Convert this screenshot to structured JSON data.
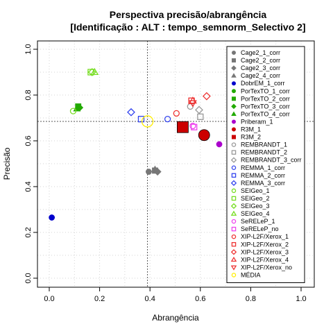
{
  "chart_data": {
    "type": "scatter",
    "title": "Perspectiva precisão/abrangência",
    "subtitle": "[Identificação : ALT : tempo_semnorm_Selectivo 2]",
    "xlabel": "Abrangência",
    "ylabel": "Precisão",
    "xlim": [
      0,
      1
    ],
    "ylim": [
      0,
      1
    ],
    "xticks": [
      "0.0",
      "0.2",
      "0.4",
      "0.6",
      "0.8",
      "1.0"
    ],
    "yticks": [
      "0.0",
      "0.2",
      "0.4",
      "0.6",
      "0.8",
      "1.0"
    ],
    "grid": true,
    "legend_position": "top-right",
    "reference_lines": {
      "x": 0.39,
      "y": 0.685
    },
    "series": [
      {
        "name": "Cage2_1_corr",
        "color": "#777777",
        "shape": "circle-filled",
        "points": [
          [
            0.395,
            0.465
          ]
        ],
        "size": 4
      },
      {
        "name": "Cage2_2_corr",
        "color": "#777777",
        "shape": "square-filled",
        "points": [
          [
            0.42,
            0.47
          ]
        ],
        "size": 4
      },
      {
        "name": "Cage2_3_corr",
        "color": "#777777",
        "shape": "diamond-filled",
        "points": [
          [
            0.43,
            0.465
          ]
        ],
        "size": 4
      },
      {
        "name": "Cage2_4_corr",
        "color": "#777777",
        "shape": "triangle-filled",
        "points": [
          [
            0.42,
            0.475
          ]
        ],
        "size": 4
      },
      {
        "name": "DobrEM_1_corr",
        "color": "#0000cc",
        "shape": "circle-filled",
        "points": [
          [
            0.01,
            0.265
          ]
        ],
        "size": 4
      },
      {
        "name": "PorTexTO_1_corr",
        "color": "#22aa00",
        "shape": "circle-filled",
        "points": [
          [
            0.115,
            0.745
          ]
        ],
        "size": 4
      },
      {
        "name": "PorTexTO_2_corr",
        "color": "#22aa00",
        "shape": "square-filled",
        "points": [
          [
            0.115,
            0.75
          ]
        ],
        "size": 4
      },
      {
        "name": "PorTexTO_3_corr",
        "color": "#22aa00",
        "shape": "diamond-filled",
        "points": [
          [
            0.12,
            0.745
          ]
        ],
        "size": 4
      },
      {
        "name": "PorTexTO_4_corr",
        "color": "#22aa00",
        "shape": "triangle-filled",
        "points": [
          [
            0.11,
            0.74
          ]
        ],
        "size": 4
      },
      {
        "name": "Priberam_1",
        "color": "#aa00cc",
        "shape": "circle-filled",
        "points": [
          [
            0.675,
            0.585
          ]
        ],
        "size": 4
      },
      {
        "name": "R3M_1",
        "color": "#cc0000",
        "shape": "circle-filled",
        "points": [
          [
            0.615,
            0.625
          ]
        ],
        "size": 8
      },
      {
        "name": "R3M_2",
        "color": "#cc0000",
        "shape": "square-filled",
        "points": [
          [
            0.53,
            0.66
          ]
        ],
        "size": 8
      },
      {
        "name": "REMBRANDT_1",
        "color": "#999999",
        "shape": "circle-open",
        "points": [
          [
            0.56,
            0.75
          ]
        ],
        "size": 4
      },
      {
        "name": "REMBRANDT_2",
        "color": "#999999",
        "shape": "square-open",
        "points": [
          [
            0.6,
            0.705
          ]
        ],
        "size": 4
      },
      {
        "name": "REMBRANDT_3_corr",
        "color": "#999999",
        "shape": "diamond-open",
        "points": [
          [
            0.595,
            0.735
          ]
        ],
        "size": 4
      },
      {
        "name": "REMMA_1_corr",
        "color": "#3344ee",
        "shape": "circle-open",
        "points": [
          [
            0.47,
            0.695
          ]
        ],
        "size": 4
      },
      {
        "name": "REMMA_2_corr",
        "color": "#3344ee",
        "shape": "square-open",
        "points": [
          [
            0.365,
            0.695
          ]
        ],
        "size": 4
      },
      {
        "name": "REMMA_3_corr",
        "color": "#3344ee",
        "shape": "diamond-open",
        "points": [
          [
            0.325,
            0.725
          ]
        ],
        "size": 4
      },
      {
        "name": "SEIGeo_1",
        "color": "#77dd22",
        "shape": "circle-open",
        "points": [
          [
            0.095,
            0.73
          ]
        ],
        "size": 4
      },
      {
        "name": "SEIGeo_2",
        "color": "#77dd22",
        "shape": "square-open",
        "points": [
          [
            0.165,
            0.9
          ]
        ],
        "size": 4
      },
      {
        "name": "SEIGeo_3",
        "color": "#77dd22",
        "shape": "diamond-open",
        "points": [
          [
            0.17,
            0.9
          ]
        ],
        "size": 4
      },
      {
        "name": "SEIGeo_4",
        "color": "#77dd22",
        "shape": "triangle-open",
        "points": [
          [
            0.18,
            0.9
          ]
        ],
        "size": 4
      },
      {
        "name": "SeRELeP_1",
        "color": "#ee44ee",
        "shape": "circle-open",
        "points": [
          [
            0.57,
            0.665
          ]
        ],
        "size": 4
      },
      {
        "name": "SeRELeP_no",
        "color": "#ee44ee",
        "shape": "square-open",
        "points": [
          [
            0.575,
            0.66
          ]
        ],
        "size": 4
      },
      {
        "name": "XIP-L2F/Xerox_1",
        "color": "#ee3333",
        "shape": "circle-open",
        "points": [
          [
            0.505,
            0.72
          ]
        ],
        "size": 4
      },
      {
        "name": "XIP-L2F/Xerox_2",
        "color": "#ee3333",
        "shape": "square-open",
        "points": [
          [
            0.565,
            0.775
          ]
        ],
        "size": 4
      },
      {
        "name": "XIP-L2F/Xerox_3",
        "color": "#ee3333",
        "shape": "diamond-open",
        "points": [
          [
            0.625,
            0.795
          ]
        ],
        "size": 4
      },
      {
        "name": "XIP-L2F/Xerox_4",
        "color": "#ee3333",
        "shape": "triangle-open",
        "points": [
          [
            0.57,
            0.775
          ]
        ],
        "size": 4
      },
      {
        "name": "XIP-L2F/Xerox_no",
        "color": "#ee3333",
        "shape": "triangle-down-open",
        "points": [
          [
            0.57,
            0.765
          ]
        ],
        "size": 4
      },
      {
        "name": "MÉDIA",
        "color": "#ffee00",
        "shape": "circle-open",
        "points": [
          [
            0.39,
            0.685
          ]
        ],
        "size": 8
      }
    ]
  }
}
